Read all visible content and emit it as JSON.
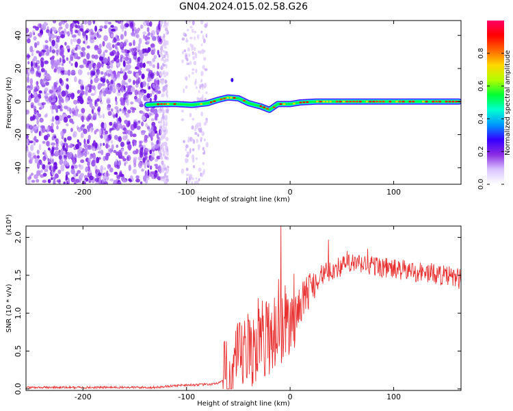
{
  "title": "GN04.2024.015.02.58.G26",
  "chart_data": [
    {
      "type": "heatmap",
      "xlabel": "Height of straight line (km)",
      "ylabel": "Frequency (Hz)",
      "xlim": [
        -255,
        165
      ],
      "ylim": [
        -50,
        49
      ],
      "xticks": [
        -200,
        -100,
        0,
        100
      ],
      "yticks": [
        -40,
        -20,
        0,
        20,
        40
      ],
      "xtick_labels": [
        "-200",
        "-100",
        "0",
        "100"
      ],
      "ytick_labels": [
        "-40",
        "-20",
        "0",
        "20",
        "40"
      ],
      "colorbar": {
        "label": "Normalized spectral amplitude",
        "range": [
          0,
          1
        ],
        "ticks": [
          0.0,
          0.2,
          0.4,
          0.6,
          0.8
        ],
        "tick_labels": [
          "0.0",
          "0.2",
          "0.4",
          "0.6",
          "0.8"
        ],
        "colors": [
          "#ffffff",
          "#d8c4ff",
          "#8a2be2",
          "#3300ff",
          "#0099ff",
          "#00ffd0",
          "#00ff33",
          "#b3ff00",
          "#ffd700",
          "#ff6600",
          "#ff0000",
          "#ff0066"
        ]
      },
      "ridge": [
        {
          "x": -138,
          "y": -2
        },
        {
          "x": -125,
          "y": -1.5
        },
        {
          "x": -110,
          "y": -1.5
        },
        {
          "x": -95,
          "y": -2
        },
        {
          "x": -80,
          "y": -1
        },
        {
          "x": -70,
          "y": 1
        },
        {
          "x": -60,
          "y": 2.5
        },
        {
          "x": -50,
          "y": 2
        },
        {
          "x": -40,
          "y": -1
        },
        {
          "x": -28,
          "y": -3
        },
        {
          "x": -20,
          "y": -5
        },
        {
          "x": -12,
          "y": -1.5
        },
        {
          "x": 0,
          "y": -1.5
        },
        {
          "x": 10,
          "y": -0.5
        },
        {
          "x": 25,
          "y": 0
        },
        {
          "x": 60,
          "y": 0
        },
        {
          "x": 100,
          "y": 0
        },
        {
          "x": 140,
          "y": 0
        },
        {
          "x": 163,
          "y": 0
        }
      ]
    },
    {
      "type": "line",
      "xlabel": "Height of straight line (km)",
      "ylabel": "SNR (10 * v/v)",
      "multiplier": "(x10⁴)",
      "xlim": [
        -255,
        165
      ],
      "ylim": [
        -0.02,
        2.15
      ],
      "xticks": [
        -200,
        -100,
        0,
        100
      ],
      "yticks": [
        0.0,
        0.5,
        1.0,
        1.5,
        2.0
      ],
      "xtick_labels": [
        "-200",
        "-100",
        "0",
        "100"
      ],
      "ytick_labels": [
        "0.0",
        "0.5",
        "1.0",
        "1.5",
        "2.0"
      ],
      "series": [
        {
          "color": "#e83030",
          "envelope": [
            {
              "x": -255,
              "y": 0.02
            },
            {
              "x": -130,
              "y": 0.02
            },
            {
              "x": -105,
              "y": 0.05
            },
            {
              "x": -75,
              "y": 0.06
            },
            {
              "x": -60,
              "y": 0.12
            },
            {
              "x": -50,
              "y": 0.35
            },
            {
              "x": -40,
              "y": 0.5
            },
            {
              "x": -30,
              "y": 0.62
            },
            {
              "x": -20,
              "y": 0.72
            },
            {
              "x": -10,
              "y": 0.8
            },
            {
              "x": 0,
              "y": 0.92
            },
            {
              "x": 10,
              "y": 1.12
            },
            {
              "x": 20,
              "y": 1.35
            },
            {
              "x": 30,
              "y": 1.5
            },
            {
              "x": 45,
              "y": 1.6
            },
            {
              "x": 60,
              "y": 1.65
            },
            {
              "x": 80,
              "y": 1.63
            },
            {
              "x": 100,
              "y": 1.58
            },
            {
              "x": 120,
              "y": 1.55
            },
            {
              "x": 140,
              "y": 1.52
            },
            {
              "x": 165,
              "y": 1.45
            }
          ],
          "spikes": [
            {
              "x": -9,
              "y": 2.15
            },
            {
              "x": -11,
              "y": 1.45
            },
            {
              "x": -31,
              "y": 1.2
            },
            {
              "x": 37,
              "y": 1.97
            },
            {
              "x": 75,
              "y": 1.85
            },
            {
              "x": 55,
              "y": 1.82
            }
          ]
        }
      ]
    }
  ]
}
